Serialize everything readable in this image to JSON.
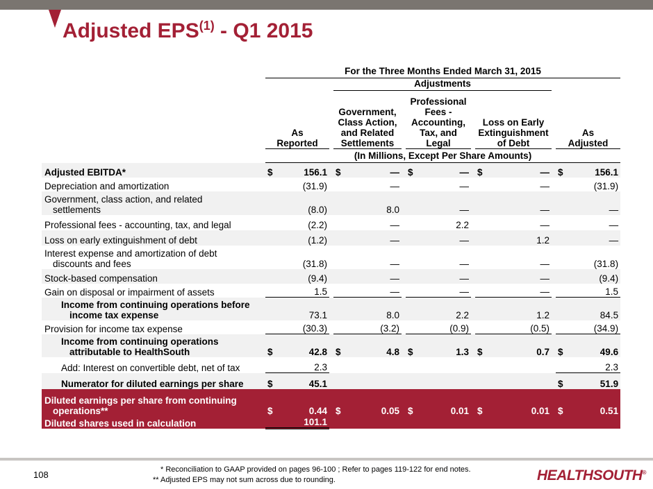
{
  "header": {
    "title": "Adjusted EPS",
    "title_sup": "(1)",
    "title_suffix": " - Q1 2015"
  },
  "table": {
    "period_header": "For the Three Months Ended March 31, 2015",
    "adjustments_header": "Adjustments",
    "units_header": "(In Millions, Except Per Share Amounts)",
    "columns": [
      "As Reported",
      "Government, Class Action, and Related Settlements",
      "Professional Fees - Accounting, Tax, and Legal",
      "Loss on Early Extinguishment of Debt",
      "As Adjusted"
    ],
    "col_lines": [
      [
        "As",
        "Reported"
      ],
      [
        "Government,",
        "Class Action,",
        "and Related",
        "Settlements"
      ],
      [
        "Professional",
        "Fees -",
        "Accounting,",
        "Tax, and",
        "Legal"
      ],
      [
        "Loss on Early",
        "Extinguishment",
        "of Debt"
      ],
      [
        "As",
        "Adjusted"
      ]
    ],
    "rows": [
      {
        "label": "Adjusted EBITDA*",
        "values": [
          "156.1",
          "—",
          "—",
          "—",
          "156.1"
        ],
        "dollar": [
          "$",
          "$",
          "$",
          "$",
          "$"
        ]
      },
      {
        "label": "Depreciation and amortization",
        "values": [
          "(31.9)",
          "—",
          "—",
          "—",
          "(31.9)"
        ]
      },
      {
        "label1": "Government, class action, and related",
        "label2": "settlements",
        "values": [
          "(8.0)",
          "8.0",
          "—",
          "—",
          "—"
        ]
      },
      {
        "label": "Professional fees - accounting, tax, and legal",
        "values": [
          "(2.2)",
          "—",
          "2.2",
          "—",
          "—"
        ]
      },
      {
        "label": "Loss on early extinguishment of debt",
        "values": [
          "(1.2)",
          "—",
          "—",
          "1.2",
          "—"
        ]
      },
      {
        "label1": "Interest expense and amortization of debt",
        "label2": "discounts and fees",
        "values": [
          "(31.8)",
          "—",
          "—",
          "—",
          "(31.8)"
        ]
      },
      {
        "label": "Stock-based compensation",
        "values": [
          "(9.4)",
          "—",
          "—",
          "—",
          "(9.4)"
        ]
      },
      {
        "label": "Gain on disposal or impairment of assets",
        "values": [
          "1.5",
          "—",
          "—",
          "—",
          "1.5"
        ]
      },
      {
        "label1": "Income from continuing operations before",
        "label2": "income tax expense",
        "values": [
          "73.1",
          "8.0",
          "2.2",
          "1.2",
          "84.5"
        ]
      },
      {
        "label": "Provision for income tax expense",
        "values": [
          "(30.3)",
          "(3.2)",
          "(0.9)",
          "(0.5)",
          "(34.9)"
        ]
      },
      {
        "label1": "Income from continuing operations",
        "label2": "attributable to HealthSouth",
        "values": [
          "42.8",
          "4.8",
          "1.3",
          "0.7",
          "49.6"
        ],
        "dollar": [
          "$",
          "$",
          "$",
          "$",
          "$"
        ]
      },
      {
        "label": "Add: Interest on convertible debt, net of tax",
        "values": [
          "2.3",
          "",
          "",
          "",
          "2.3"
        ]
      },
      {
        "label": "Numerator for diluted earnings per share",
        "values": [
          "45.1",
          "",
          "",
          "",
          "51.9"
        ],
        "dollar": [
          "$",
          "",
          "",
          "",
          "$"
        ]
      },
      {
        "label1": "Diluted earnings per share from continuing",
        "label2": "operations**",
        "values": [
          "0.44",
          "0.05",
          "0.01",
          "0.01",
          "0.51"
        ],
        "dollar": [
          "$",
          "$",
          "$",
          "$",
          "$"
        ]
      },
      {
        "label": "Diluted shares used in calculation",
        "values": [
          "101.1",
          "",
          "",
          "",
          ""
        ]
      }
    ]
  },
  "footer": {
    "page_number": "108",
    "note1": "* Reconciliation to GAAP provided on pages 96-100 ; Refer to pages 119-122 for end notes.",
    "note2": "** Adjusted EPS may not sum across due to rounding.",
    "logo": "HEALTHSOUTH",
    "logo_mark": "®"
  },
  "colors": {
    "accent": "#a32035",
    "top_bar": "#7a7570",
    "row_shade": "#f1f1f1"
  }
}
